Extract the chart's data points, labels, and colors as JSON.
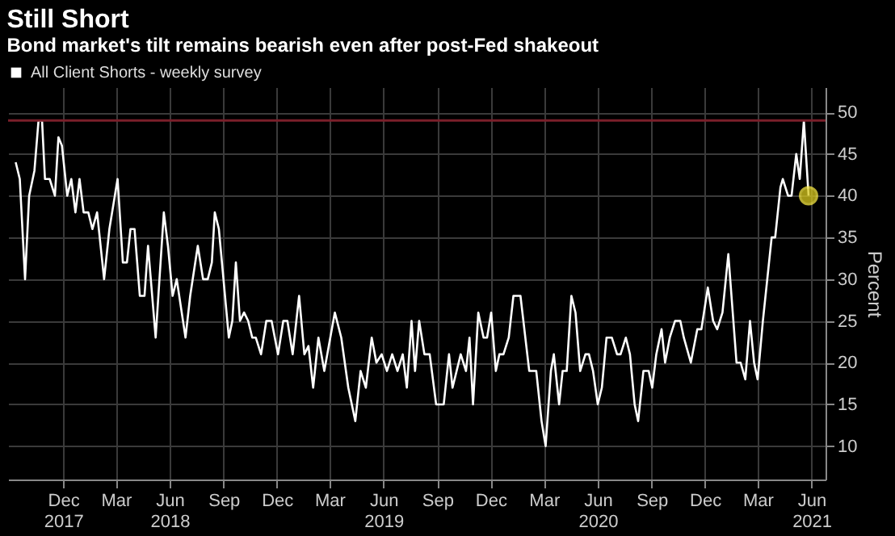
{
  "chart_data": {
    "type": "line",
    "title": "Still Short",
    "subtitle": "Bond market's tilt remains bearish even after post-Fed shakeout",
    "ylabel": "Percent",
    "x": [
      "2017-09-11",
      "2017-09-18",
      "2017-09-27",
      "2017-10-04",
      "2017-10-13",
      "2017-10-20",
      "2017-10-26",
      "2017-10-31",
      "2017-11-08",
      "2017-11-17",
      "2017-11-23",
      "2017-11-29",
      "2017-12-08",
      "2017-12-15",
      "2017-12-22",
      "2017-12-29",
      "2018-01-05",
      "2018-01-13",
      "2018-01-20",
      "2018-01-28",
      "2018-02-09",
      "2018-02-18",
      "2018-03-04",
      "2018-03-13",
      "2018-03-20",
      "2018-03-26",
      "2018-04-02",
      "2018-04-11",
      "2018-04-19",
      "2018-04-25",
      "2018-05-08",
      "2018-05-22",
      "2018-05-29",
      "2018-06-06",
      "2018-06-13",
      "2018-06-28",
      "2018-07-06",
      "2018-07-19",
      "2018-07-28",
      "2018-08-05",
      "2018-08-12",
      "2018-08-17",
      "2018-08-24",
      "2018-09-10",
      "2018-09-16",
      "2018-09-22",
      "2018-09-29",
      "2018-10-06",
      "2018-10-13",
      "2018-10-20",
      "2018-10-26",
      "2018-11-04",
      "2018-11-13",
      "2018-11-22",
      "2018-12-03",
      "2018-12-12",
      "2018-12-19",
      "2018-12-28",
      "2019-01-08",
      "2019-01-17",
      "2019-01-24",
      "2019-02-01",
      "2019-02-10",
      "2019-02-20",
      "2019-03-10",
      "2019-03-21",
      "2019-04-02",
      "2019-04-14",
      "2019-04-23",
      "2019-05-02",
      "2019-05-12",
      "2019-05-20",
      "2019-05-29",
      "2019-06-07",
      "2019-06-16",
      "2019-06-25",
      "2019-07-04",
      "2019-07-11",
      "2019-07-19",
      "2019-07-25",
      "2019-08-01",
      "2019-08-10",
      "2019-08-19",
      "2019-08-30",
      "2019-09-12",
      "2019-09-21",
      "2019-09-27",
      "2019-10-11",
      "2019-10-20",
      "2019-10-26",
      "2019-11-01",
      "2019-11-10",
      "2019-11-19",
      "2019-11-25",
      "2019-12-02",
      "2019-12-10",
      "2019-12-16",
      "2019-12-23",
      "2020-01-01",
      "2020-01-09",
      "2020-01-21",
      "2020-02-05",
      "2020-02-17",
      "2020-02-26",
      "2020-03-04",
      "2020-03-13",
      "2020-03-18",
      "2020-03-27",
      "2020-04-02",
      "2020-04-09",
      "2020-04-17",
      "2020-04-24",
      "2020-05-02",
      "2020-05-11",
      "2020-05-17",
      "2020-05-24",
      "2020-06-01",
      "2020-06-08",
      "2020-06-16",
      "2020-06-25",
      "2020-07-04",
      "2020-07-10",
      "2020-07-19",
      "2020-07-26",
      "2020-08-03",
      "2020-08-09",
      "2020-08-18",
      "2020-08-27",
      "2020-09-02",
      "2020-09-09",
      "2020-09-18",
      "2020-09-24",
      "2020-10-02",
      "2020-10-11",
      "2020-10-20",
      "2020-10-26",
      "2020-11-07",
      "2020-11-18",
      "2020-11-25",
      "2020-12-06",
      "2020-12-15",
      "2020-12-22",
      "2020-12-31",
      "2021-01-10",
      "2021-01-24",
      "2021-01-31",
      "2021-02-08",
      "2021-02-16",
      "2021-02-23",
      "2021-03-01",
      "2021-03-10",
      "2021-03-25",
      "2021-03-31",
      "2021-04-09",
      "2021-04-13",
      "2021-04-22",
      "2021-04-28",
      "2021-05-06",
      "2021-05-12",
      "2021-05-19",
      "2021-05-27"
    ],
    "series": [
      {
        "name": "All Client Shorts - weekly survey",
        "color": "#ffffff",
        "values": [
          44,
          42,
          30,
          40,
          43,
          49,
          49,
          42,
          42,
          40,
          47,
          46,
          40,
          42,
          38,
          42,
          38,
          38,
          36,
          38,
          30,
          36,
          42,
          32,
          32,
          36,
          36,
          28,
          28,
          34,
          23,
          38,
          34,
          28,
          30,
          23,
          28,
          34,
          30,
          30,
          32,
          38,
          36,
          23,
          25,
          32,
          25,
          26,
          25,
          23,
          23,
          21,
          25,
          25,
          21,
          25,
          25,
          21,
          28,
          21,
          22,
          17,
          23,
          19,
          26,
          23,
          17,
          13,
          19,
          17,
          23,
          20,
          21,
          19,
          21,
          19,
          21,
          17,
          25,
          19,
          25,
          21,
          21,
          15,
          15,
          21,
          17,
          21,
          19,
          23,
          15,
          26,
          23,
          23,
          26,
          19,
          21,
          21,
          23,
          28,
          28,
          19,
          19,
          13,
          10,
          19,
          21,
          15,
          19,
          19,
          28,
          26,
          19,
          21,
          21,
          19,
          15,
          17,
          23,
          23,
          21,
          21,
          23,
          21,
          15,
          13,
          19,
          19,
          17,
          21,
          24,
          20,
          23,
          25,
          25,
          23,
          20,
          24,
          24,
          29,
          25,
          24,
          26,
          33,
          20,
          20,
          18,
          25,
          20,
          18,
          25,
          35,
          35,
          41,
          42,
          40,
          40,
          45,
          42,
          49,
          40
        ]
      },
      {
        "type": "scatter",
        "x": [
          "2021-05-27"
        ],
        "color": "#d8c81e",
        "marker": "circle",
        "values": [
          40
        ]
      }
    ],
    "xlim": [
      "2017-08-29",
      "2021-06-25"
    ],
    "xticks": [
      {
        "value": "2017-12-01",
        "label": "Dec\n2017"
      },
      {
        "value": "2018-03-01",
        "label": "Mar"
      },
      {
        "value": "2018-06-01",
        "label": "Jun\n2018"
      },
      {
        "value": "2018-09-01",
        "label": "Sep"
      },
      {
        "value": "2018-12-01",
        "label": "Dec"
      },
      {
        "value": "2019-03-01",
        "label": "Mar"
      },
      {
        "value": "2019-06-01",
        "label": "Jun\n2019"
      },
      {
        "value": "2019-09-01",
        "label": "Sep"
      },
      {
        "value": "2019-12-01",
        "label": "Dec"
      },
      {
        "value": "2020-03-01",
        "label": "Mar"
      },
      {
        "value": "2020-06-01",
        "label": "Jun\n2020"
      },
      {
        "value": "2020-09-01",
        "label": "Sep"
      },
      {
        "value": "2020-12-01",
        "label": "Dec"
      },
      {
        "value": "2021-03-01",
        "label": "Mar"
      },
      {
        "value": "2021-06-01",
        "label": "Jun\n2021"
      }
    ],
    "ylim": [
      6,
      53
    ],
    "yticks": [
      10,
      15,
      20,
      25,
      30,
      35,
      40,
      45,
      50
    ],
    "ref_lines": [
      {
        "axis": "y",
        "value": 49,
        "color": "#7a1f2a"
      }
    ],
    "grid": true,
    "legend": "top left"
  }
}
